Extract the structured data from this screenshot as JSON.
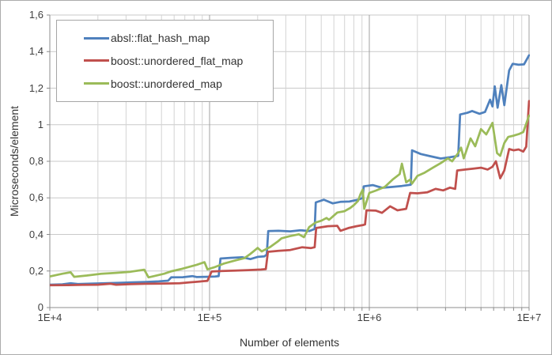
{
  "figure": {
    "background": "#ffffff",
    "border_color": "#ababab"
  },
  "y_axis": {
    "title": "Microseconds/element",
    "tick_labels": [
      "0",
      "0,2",
      "0,4",
      "0,6",
      "0,8",
      "1",
      "1,2",
      "1,4",
      "1,6"
    ],
    "tick_values": [
      0,
      0.2,
      0.4,
      0.6,
      0.8,
      1.0,
      1.2,
      1.4,
      1.6
    ],
    "min": 0,
    "max": 1.6
  },
  "x_axis": {
    "title": "Number of elements",
    "tick_labels": [
      "1E+4",
      "1E+5",
      "1E+6",
      "1E+7"
    ],
    "tick_values": [
      10000,
      100000,
      1000000,
      10000000
    ],
    "scale": "log"
  },
  "legend": {
    "position": "top-left",
    "entries": [
      {
        "label": "absl::flat_hash_map",
        "color": "#4F81BD"
      },
      {
        "label": "boost::unordered_flat_map",
        "color": "#C0504D"
      },
      {
        "label": "boost::unordered_map",
        "color": "#9BBB59"
      }
    ]
  },
  "chart_data": {
    "type": "line",
    "title": "",
    "xlabel": "Number of elements",
    "ylabel": "Microseconds/element",
    "x_scale": "log",
    "xlim": [
      10000,
      10000000
    ],
    "ylim": [
      0,
      1.6
    ],
    "grid": true,
    "legend_position": "top-left",
    "series": [
      {
        "name": "absl::flat_hash_map",
        "color": "#4F81BD",
        "points": [
          [
            10000,
            0.125
          ],
          [
            12000,
            0.127
          ],
          [
            13500,
            0.133
          ],
          [
            15000,
            0.129
          ],
          [
            18000,
            0.131
          ],
          [
            22000,
            0.133
          ],
          [
            27000,
            0.135
          ],
          [
            33000,
            0.138
          ],
          [
            40000,
            0.14
          ],
          [
            48000,
            0.143
          ],
          [
            55000,
            0.147
          ],
          [
            57500,
            0.165
          ],
          [
            68000,
            0.166
          ],
          [
            78000,
            0.172
          ],
          [
            83000,
            0.167
          ],
          [
            95000,
            0.168
          ],
          [
            108000,
            0.17
          ],
          [
            114000,
            0.172
          ],
          [
            117000,
            0.268
          ],
          [
            135000,
            0.272
          ],
          [
            160000,
            0.275
          ],
          [
            180000,
            0.265
          ],
          [
            200000,
            0.277
          ],
          [
            220000,
            0.28
          ],
          [
            228000,
            0.29
          ],
          [
            233000,
            0.418
          ],
          [
            270000,
            0.42
          ],
          [
            320000,
            0.417
          ],
          [
            370000,
            0.423
          ],
          [
            420000,
            0.418
          ],
          [
            455000,
            0.43
          ],
          [
            462000,
            0.575
          ],
          [
            520000,
            0.59
          ],
          [
            590000,
            0.57
          ],
          [
            660000,
            0.578
          ],
          [
            750000,
            0.58
          ],
          [
            850000,
            0.59
          ],
          [
            910000,
            0.6
          ],
          [
            922000,
            0.663
          ],
          [
            1050000,
            0.67
          ],
          [
            1200000,
            0.655
          ],
          [
            1400000,
            0.66
          ],
          [
            1600000,
            0.665
          ],
          [
            1820000,
            0.672
          ],
          [
            1850000,
            0.86
          ],
          [
            2100000,
            0.84
          ],
          [
            2400000,
            0.828
          ],
          [
            2800000,
            0.815
          ],
          [
            3200000,
            0.822
          ],
          [
            3600000,
            0.83
          ],
          [
            3700000,
            1.056
          ],
          [
            4100000,
            1.065
          ],
          [
            4400000,
            1.075
          ],
          [
            4900000,
            1.06
          ],
          [
            5300000,
            1.07
          ],
          [
            5700000,
            1.137
          ],
          [
            5900000,
            1.1
          ],
          [
            6100000,
            1.21
          ],
          [
            6350000,
            1.093
          ],
          [
            6700000,
            1.217
          ],
          [
            7000000,
            1.107
          ],
          [
            7500000,
            1.297
          ],
          [
            7900000,
            1.333
          ],
          [
            8600000,
            1.328
          ],
          [
            9300000,
            1.33
          ],
          [
            10000000,
            1.38
          ]
        ]
      },
      {
        "name": "boost::unordered_flat_map",
        "color": "#C0504D",
        "points": [
          [
            10000,
            0.122
          ],
          [
            13000,
            0.123
          ],
          [
            16000,
            0.124
          ],
          [
            20000,
            0.125
          ],
          [
            24000,
            0.13
          ],
          [
            26000,
            0.125
          ],
          [
            32000,
            0.128
          ],
          [
            40000,
            0.13
          ],
          [
            48000,
            0.131
          ],
          [
            56000,
            0.132
          ],
          [
            65000,
            0.133
          ],
          [
            75000,
            0.138
          ],
          [
            85000,
            0.142
          ],
          [
            97000,
            0.146
          ],
          [
            103000,
            0.197
          ],
          [
            120000,
            0.2
          ],
          [
            145000,
            0.202
          ],
          [
            175000,
            0.205
          ],
          [
            210000,
            0.208
          ],
          [
            225000,
            0.21
          ],
          [
            232000,
            0.305
          ],
          [
            270000,
            0.31
          ],
          [
            320000,
            0.315
          ],
          [
            380000,
            0.33
          ],
          [
            430000,
            0.325
          ],
          [
            455000,
            0.33
          ],
          [
            465000,
            0.435
          ],
          [
            550000,
            0.445
          ],
          [
            630000,
            0.447
          ],
          [
            660000,
            0.42
          ],
          [
            740000,
            0.435
          ],
          [
            830000,
            0.445
          ],
          [
            920000,
            0.452
          ],
          [
            940000,
            0.455
          ],
          [
            960000,
            0.532
          ],
          [
            1100000,
            0.53
          ],
          [
            1200000,
            0.518
          ],
          [
            1350000,
            0.554
          ],
          [
            1500000,
            0.532
          ],
          [
            1700000,
            0.54
          ],
          [
            1800000,
            0.627
          ],
          [
            2000000,
            0.625
          ],
          [
            2300000,
            0.63
          ],
          [
            2600000,
            0.649
          ],
          [
            2900000,
            0.641
          ],
          [
            3200000,
            0.656
          ],
          [
            3450000,
            0.649
          ],
          [
            3550000,
            0.75
          ],
          [
            4000000,
            0.755
          ],
          [
            4500000,
            0.76
          ],
          [
            5000000,
            0.765
          ],
          [
            5500000,
            0.755
          ],
          [
            5900000,
            0.77
          ],
          [
            6200000,
            0.8
          ],
          [
            6600000,
            0.707
          ],
          [
            7000000,
            0.75
          ],
          [
            7500000,
            0.867
          ],
          [
            8000000,
            0.86
          ],
          [
            8600000,
            0.865
          ],
          [
            9200000,
            0.853
          ],
          [
            9600000,
            0.88
          ],
          [
            10000000,
            1.13
          ]
        ]
      },
      {
        "name": "boost::unordered_map",
        "color": "#9BBB59",
        "points": [
          [
            10000,
            0.17
          ],
          [
            12000,
            0.185
          ],
          [
            13500,
            0.193
          ],
          [
            14200,
            0.168
          ],
          [
            17000,
            0.175
          ],
          [
            21000,
            0.185
          ],
          [
            26000,
            0.19
          ],
          [
            32000,
            0.196
          ],
          [
            39000,
            0.207
          ],
          [
            41500,
            0.165
          ],
          [
            45000,
            0.172
          ],
          [
            52000,
            0.185
          ],
          [
            57000,
            0.197
          ],
          [
            66000,
            0.21
          ],
          [
            83000,
            0.234
          ],
          [
            93000,
            0.248
          ],
          [
            97000,
            0.209
          ],
          [
            107000,
            0.22
          ],
          [
            123000,
            0.241
          ],
          [
            147000,
            0.259
          ],
          [
            165000,
            0.27
          ],
          [
            179000,
            0.292
          ],
          [
            190000,
            0.31
          ],
          [
            200000,
            0.326
          ],
          [
            212000,
            0.307
          ],
          [
            238000,
            0.33
          ],
          [
            266000,
            0.36
          ],
          [
            282000,
            0.379
          ],
          [
            316000,
            0.39
          ],
          [
            362000,
            0.401
          ],
          [
            390000,
            0.385
          ],
          [
            420000,
            0.44
          ],
          [
            460000,
            0.465
          ],
          [
            500000,
            0.475
          ],
          [
            540000,
            0.49
          ],
          [
            560000,
            0.48
          ],
          [
            630000,
            0.52
          ],
          [
            700000,
            0.527
          ],
          [
            760000,
            0.545
          ],
          [
            800000,
            0.56
          ],
          [
            850000,
            0.583
          ],
          [
            880000,
            0.62
          ],
          [
            910000,
            0.645
          ],
          [
            930000,
            0.54
          ],
          [
            1000000,
            0.627
          ],
          [
            1100000,
            0.64
          ],
          [
            1250000,
            0.66
          ],
          [
            1400000,
            0.7
          ],
          [
            1550000,
            0.73
          ],
          [
            1600000,
            0.787
          ],
          [
            1700000,
            0.685
          ],
          [
            1800000,
            0.7
          ],
          [
            1850000,
            0.678
          ],
          [
            2000000,
            0.72
          ],
          [
            2200000,
            0.736
          ],
          [
            2500000,
            0.765
          ],
          [
            2800000,
            0.79
          ],
          [
            3100000,
            0.816
          ],
          [
            3300000,
            0.8
          ],
          [
            3600000,
            0.845
          ],
          [
            3750000,
            0.875
          ],
          [
            3900000,
            0.816
          ],
          [
            4300000,
            0.925
          ],
          [
            4600000,
            0.882
          ],
          [
            5000000,
            0.976
          ],
          [
            5400000,
            0.947
          ],
          [
            5900000,
            1.01
          ],
          [
            6300000,
            0.845
          ],
          [
            6600000,
            0.83
          ],
          [
            7000000,
            0.9
          ],
          [
            7400000,
            0.933
          ],
          [
            8000000,
            0.94
          ],
          [
            8700000,
            0.95
          ],
          [
            9200000,
            0.96
          ],
          [
            10000000,
            1.05
          ]
        ]
      }
    ]
  }
}
